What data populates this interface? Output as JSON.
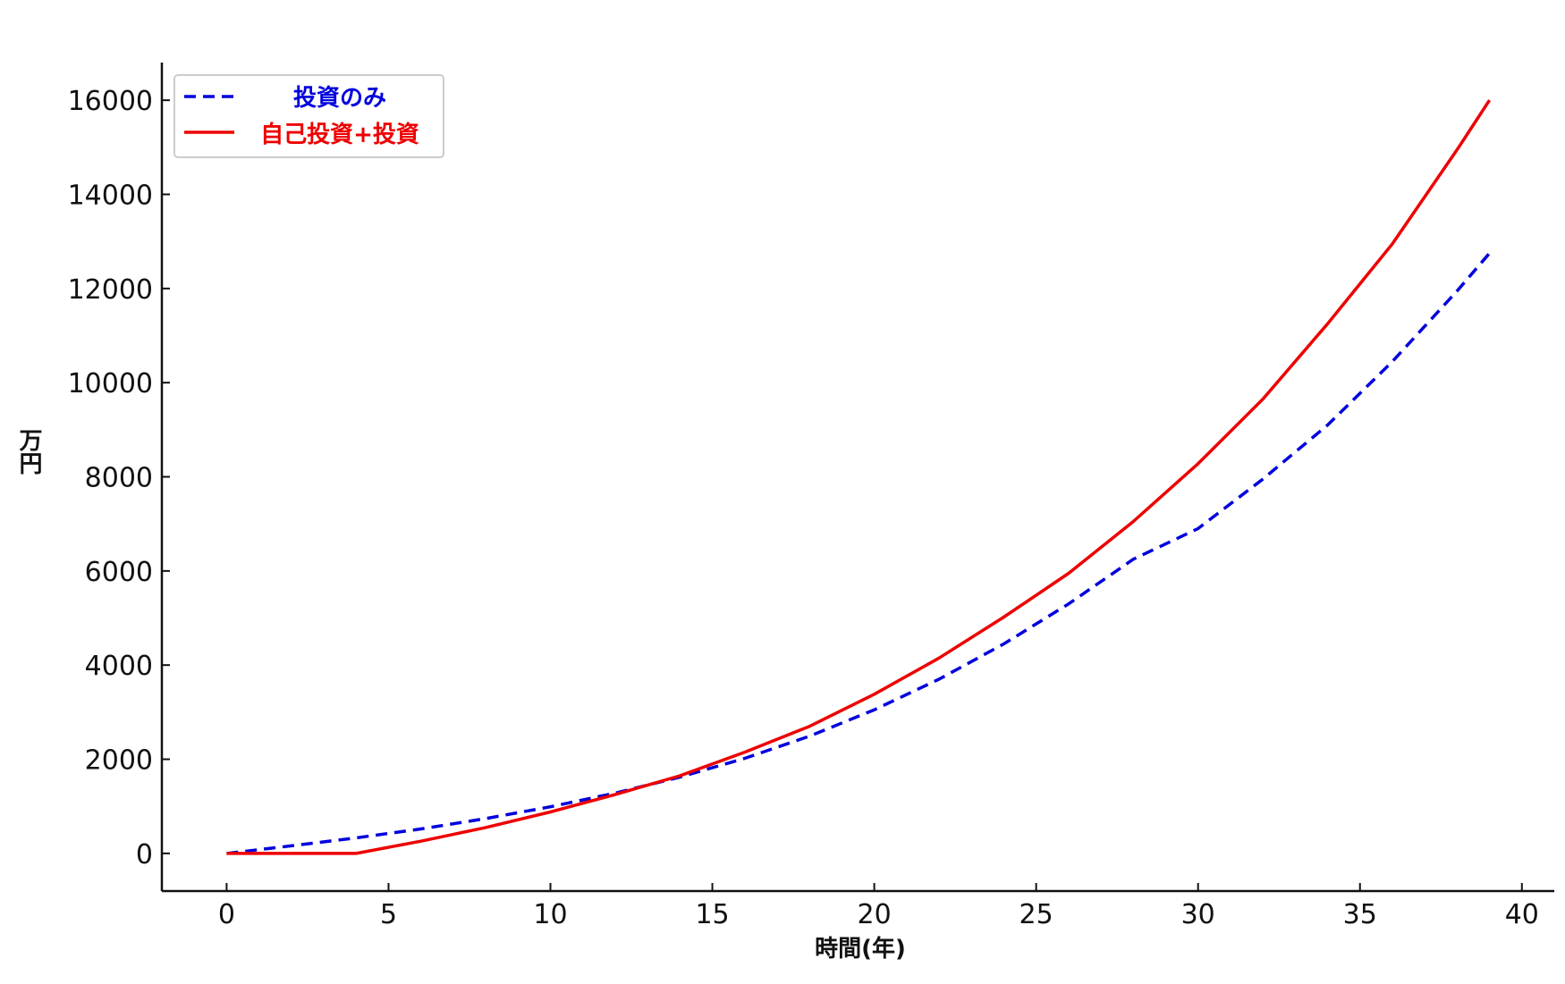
{
  "chart_data": {
    "type": "line",
    "xlabel": "時間(年)",
    "ylabel": "万円",
    "xlim": [
      -2,
      41
    ],
    "ylim": [
      -800,
      16800
    ],
    "xticks": [
      0,
      5,
      10,
      15,
      20,
      25,
      30,
      35,
      40
    ],
    "yticks": [
      0,
      2000,
      4000,
      6000,
      8000,
      10000,
      12000,
      14000,
      16000
    ],
    "grid": false,
    "legend_position": "top-left",
    "series": [
      {
        "name": "投資のみ",
        "color": "#0000dd",
        "style": "dashed",
        "x": [
          0,
          2,
          4,
          6,
          8,
          10,
          12,
          14,
          16,
          18,
          20,
          22,
          24,
          26,
          28,
          30,
          32,
          34,
          36,
          38,
          39
        ],
        "y": [
          0,
          160,
          330,
          520,
          740,
          990,
          1280,
          1620,
          2020,
          2490,
          3050,
          3700,
          4450,
          5300,
          6250,
          6900,
          7950,
          9100,
          10450,
          11950,
          12750
        ]
      },
      {
        "name": "自己投資+投資",
        "color": "#ee0000",
        "style": "solid",
        "x": [
          0,
          4,
          6,
          8,
          10,
          12,
          14,
          16,
          18,
          20,
          22,
          24,
          26,
          28,
          30,
          32,
          34,
          36,
          37,
          38,
          39
        ],
        "y": [
          0,
          0,
          260,
          550,
          880,
          1250,
          1650,
          2150,
          2700,
          3380,
          4150,
          5020,
          5950,
          7050,
          8280,
          9650,
          11250,
          12950,
          13950,
          14950,
          16000
        ]
      }
    ]
  }
}
